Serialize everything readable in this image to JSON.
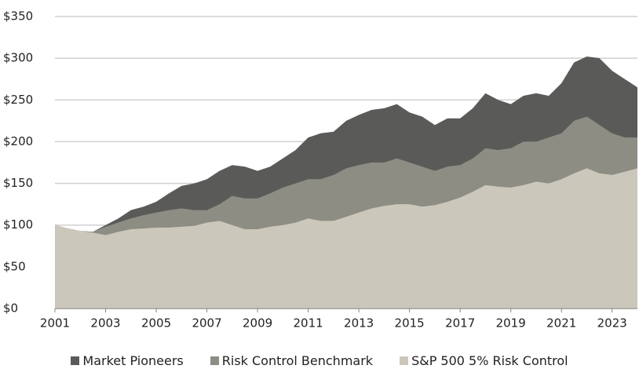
{
  "chart_data": {
    "type": "area",
    "x": [
      2001,
      2001.5,
      2002,
      2002.5,
      2003,
      2003.5,
      2004,
      2004.5,
      2005,
      2005.5,
      2006,
      2006.5,
      2007,
      2007.5,
      2008,
      2008.5,
      2009,
      2009.5,
      2010,
      2010.5,
      2011,
      2011.5,
      2012,
      2012.5,
      2013,
      2013.5,
      2014,
      2014.5,
      2015,
      2015.5,
      2016,
      2016.5,
      2017,
      2017.5,
      2018,
      2018.5,
      2019,
      2019.5,
      2020,
      2020.5,
      2021,
      2021.5,
      2022,
      2022.5,
      2023,
      2023.5,
      2024
    ],
    "series": [
      {
        "name": "Market Pioneers",
        "color": "#5a5b59",
        "values": [
          100,
          96,
          93,
          92,
          100,
          108,
          118,
          122,
          128,
          138,
          147,
          150,
          155,
          165,
          172,
          170,
          165,
          170,
          180,
          190,
          205,
          210,
          212,
          225,
          232,
          238,
          240,
          245,
          235,
          230,
          220,
          228,
          228,
          240,
          258,
          250,
          245,
          255,
          258,
          255,
          270,
          295,
          302,
          300,
          285,
          275,
          265
        ]
      },
      {
        "name": "Risk Control Benchmark",
        "color": "#8e8d84",
        "values": [
          100,
          96,
          93,
          92,
          98,
          103,
          108,
          112,
          115,
          118,
          120,
          118,
          118,
          125,
          135,
          132,
          132,
          138,
          145,
          150,
          155,
          155,
          160,
          168,
          172,
          175,
          175,
          180,
          175,
          170,
          165,
          170,
          172,
          180,
          192,
          190,
          192,
          200,
          200,
          205,
          210,
          225,
          230,
          220,
          210,
          205,
          205
        ]
      },
      {
        "name": "S&P 500 5% Risk Control",
        "color": "#cbc8bb",
        "values": [
          100,
          96,
          93,
          91,
          88,
          92,
          95,
          96,
          97,
          97,
          98,
          99,
          103,
          105,
          100,
          95,
          95,
          98,
          100,
          103,
          108,
          105,
          105,
          110,
          115,
          120,
          123,
          125,
          125,
          122,
          124,
          128,
          133,
          140,
          148,
          146,
          145,
          148,
          152,
          150,
          155,
          162,
          168,
          162,
          160,
          164,
          168
        ]
      }
    ],
    "xlim": [
      2001,
      2024
    ],
    "xticks": [
      2001,
      2003,
      2005,
      2007,
      2009,
      2011,
      2013,
      2015,
      2017,
      2019,
      2021,
      2023
    ],
    "ylim": [
      0,
      350
    ],
    "yticks": [
      {
        "value": 0,
        "label": "$0"
      },
      {
        "value": 50,
        "label": "$50"
      },
      {
        "value": 100,
        "label": "$100"
      },
      {
        "value": 150,
        "label": "$150"
      },
      {
        "value": 200,
        "label": "$200"
      },
      {
        "value": 250,
        "label": "$250"
      },
      {
        "value": 300,
        "label": "$300"
      },
      {
        "value": 350,
        "label": "$350"
      }
    ],
    "grid": true
  }
}
